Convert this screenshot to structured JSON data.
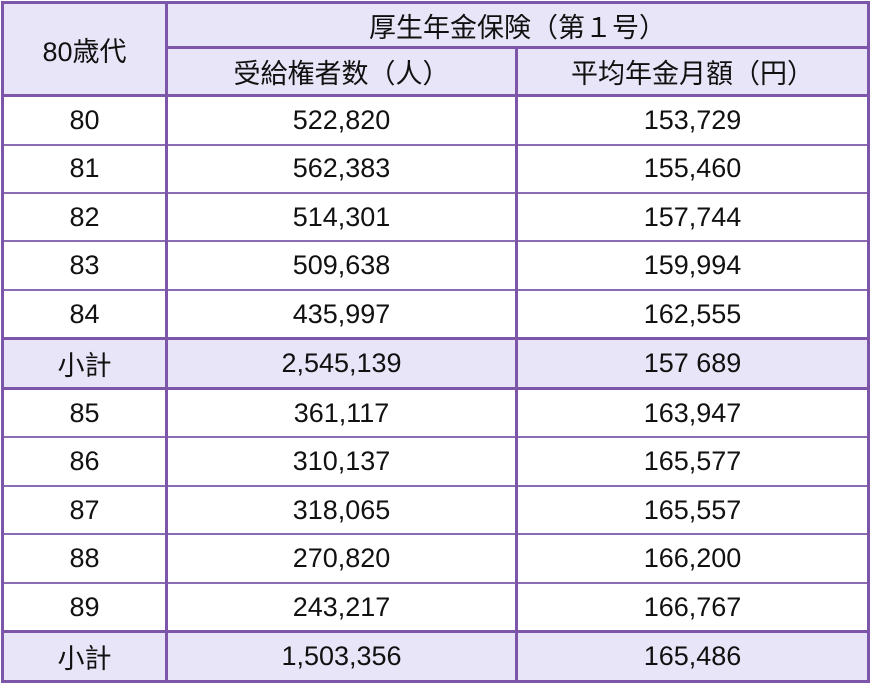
{
  "header": {
    "age_group": "80歳代",
    "group_title": "厚生年金保険（第１号）",
    "col_recipients": "受給権者数（人）",
    "col_avg_monthly": "平均年金月額（円）"
  },
  "rows": [
    {
      "age": "80",
      "recipients": "522,820",
      "avg": "153,729",
      "subtotal": false
    },
    {
      "age": "81",
      "recipients": "562,383",
      "avg": "155,460",
      "subtotal": false
    },
    {
      "age": "82",
      "recipients": "514,301",
      "avg": "157,744",
      "subtotal": false
    },
    {
      "age": "83",
      "recipients": "509,638",
      "avg": "159,994",
      "subtotal": false
    },
    {
      "age": "84",
      "recipients": "435,997",
      "avg": "162,555",
      "subtotal": false
    },
    {
      "age": "小計",
      "recipients": "2,545,139",
      "avg": "157 689",
      "subtotal": true
    },
    {
      "age": "85",
      "recipients": "361,117",
      "avg": "163,947",
      "subtotal": false
    },
    {
      "age": "86",
      "recipients": "310,137",
      "avg": "165,577",
      "subtotal": false
    },
    {
      "age": "87",
      "recipients": "318,065",
      "avg": "165,557",
      "subtotal": false
    },
    {
      "age": "88",
      "recipients": "270,820",
      "avg": "166,200",
      "subtotal": false
    },
    {
      "age": "89",
      "recipients": "243,217",
      "avg": "166,767",
      "subtotal": false
    },
    {
      "age": "小計",
      "recipients": "1,503,356",
      "avg": "165,486",
      "subtotal": true
    }
  ],
  "colors": {
    "border": "#7d55a9",
    "header_bg": "#e7e5f7"
  }
}
